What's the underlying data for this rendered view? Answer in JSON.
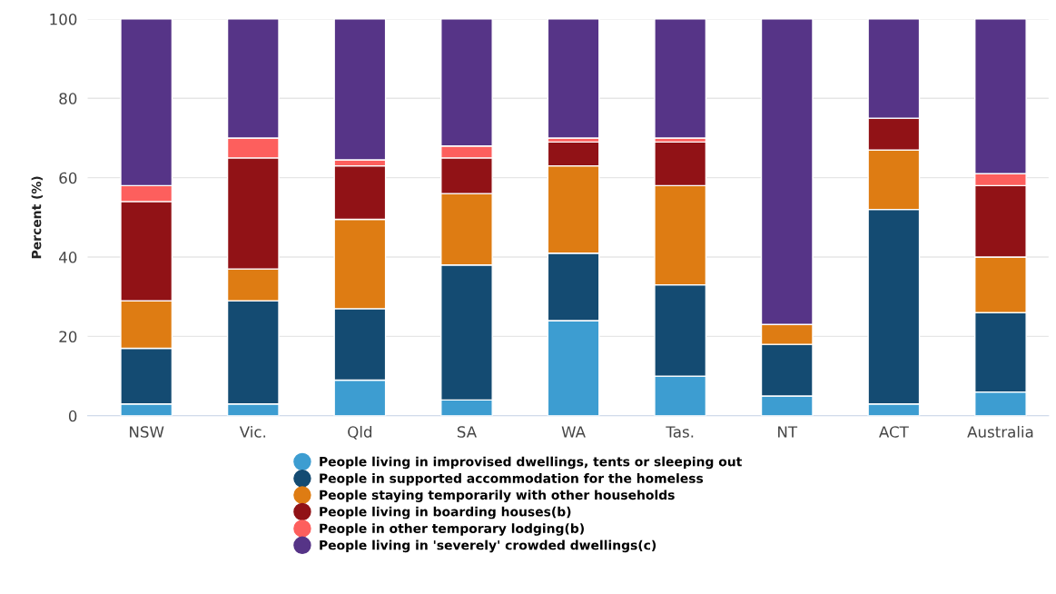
{
  "chart_data": {
    "type": "bar",
    "stacked": true,
    "ylabel": "Percent (%)",
    "categories": [
      "NSW",
      "Vic.",
      "Qld",
      "SA",
      "WA",
      "Tas.",
      "NT",
      "ACT",
      "Australia"
    ],
    "series": [
      {
        "name": "People living in improvised dwellings, tents or sleeping out",
        "color": "#3d9dd1",
        "values": [
          3,
          3,
          9,
          4,
          24,
          10,
          5,
          3,
          6
        ]
      },
      {
        "name": "People in supported accommodation for the homeless",
        "color": "#144b72",
        "values": [
          14,
          26,
          18,
          34,
          17,
          23,
          13,
          49,
          20
        ]
      },
      {
        "name": "People staying temporarily with other households",
        "color": "#de7c13",
        "values": [
          12,
          8,
          22.5,
          18,
          22,
          25,
          5,
          15,
          14
        ]
      },
      {
        "name": "People living in boarding houses(b)",
        "color": "#911216",
        "values": [
          25,
          28,
          13.5,
          9,
          6,
          11,
          0,
          8,
          18
        ]
      },
      {
        "name": "People in other temporary lodging(b)",
        "color": "#fd5f5d",
        "values": [
          4,
          5,
          1.5,
          3,
          1,
          1,
          0,
          0,
          3
        ]
      },
      {
        "name": "People living in 'severely' crowded dwellings(c)",
        "color": "#563487",
        "values": [
          42,
          30,
          35.5,
          32,
          30,
          30,
          77,
          25,
          39
        ]
      }
    ],
    "ylim": [
      0,
      100
    ],
    "yticks": [
      0,
      20,
      40,
      60,
      80,
      100
    ],
    "grid": "y",
    "legend": "bottom"
  }
}
